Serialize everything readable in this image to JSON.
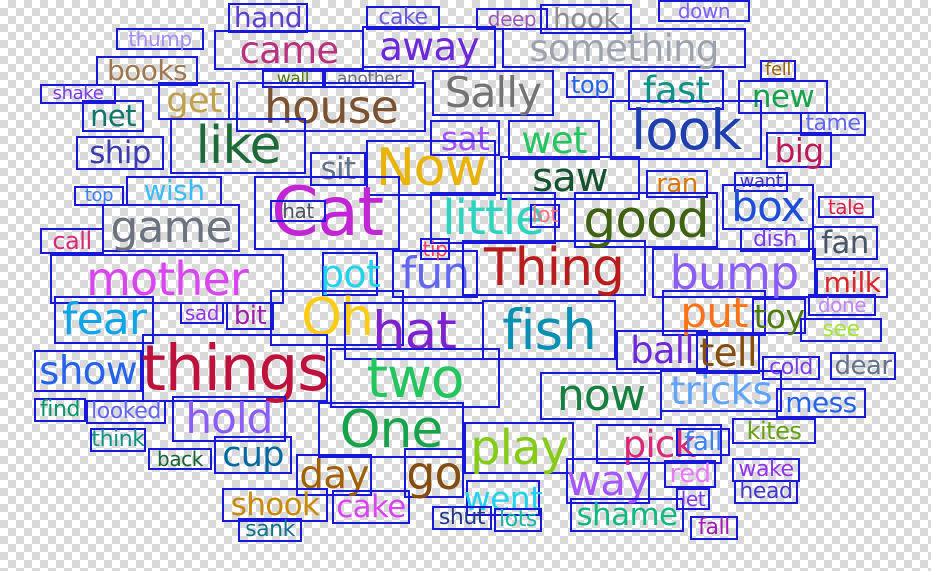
{
  "words": [
    {
      "text": "hand",
      "color": "#5a3fd0"
    },
    {
      "text": "cake",
      "color": "#6a5ae0"
    },
    {
      "text": "deep",
      "color": "#9b59b6"
    },
    {
      "text": "hook",
      "color": "#8e8e8e"
    },
    {
      "text": "down",
      "color": "#7d5fff"
    },
    {
      "text": "thump",
      "color": "#a78bfa"
    },
    {
      "text": "came",
      "color": "#b83280"
    },
    {
      "text": "away",
      "color": "#6d28d9"
    },
    {
      "text": "something",
      "color": "#9ca3af"
    },
    {
      "text": "books",
      "color": "#a07850"
    },
    {
      "text": "wall",
      "color": "#4d7c0f"
    },
    {
      "text": "another",
      "color": "#6b7280"
    },
    {
      "text": "fell",
      "color": "#a16207"
    },
    {
      "text": "shake",
      "color": "#7c3aed"
    },
    {
      "text": "get",
      "color": "#c2a14d"
    },
    {
      "text": "house",
      "color": "#7a5230"
    },
    {
      "text": "Sally",
      "color": "#737373"
    },
    {
      "text": "top",
      "color": "#2563eb"
    },
    {
      "text": "fast",
      "color": "#0d9488"
    },
    {
      "text": "new",
      "color": "#16a34a"
    },
    {
      "text": "net",
      "color": "#0f766e"
    },
    {
      "text": "ship",
      "color": "#3b3bb3"
    },
    {
      "text": "like",
      "color": "#1e6b3a"
    },
    {
      "text": "sat",
      "color": "#a855f7"
    },
    {
      "text": "wet",
      "color": "#22c55e"
    },
    {
      "text": "look",
      "color": "#1e40af"
    },
    {
      "text": "tame",
      "color": "#6366f1"
    },
    {
      "text": "big",
      "color": "#be185d"
    },
    {
      "text": "sit",
      "color": "#64748b"
    },
    {
      "text": "Now",
      "color": "#eab308"
    },
    {
      "text": "saw",
      "color": "#14532d"
    },
    {
      "text": "ran",
      "color": "#d97706"
    },
    {
      "text": "want",
      "color": "#4338ca"
    },
    {
      "text": "top",
      "color": "#3b82f6"
    },
    {
      "text": "wish",
      "color": "#38bdf8"
    },
    {
      "text": "Cat",
      "color": "#c026d3"
    },
    {
      "text": "hat",
      "color": "#4b5563"
    },
    {
      "text": "little",
      "color": "#2dd4bf"
    },
    {
      "text": "lot",
      "color": "#fb7185"
    },
    {
      "text": "good",
      "color": "#3f6212"
    },
    {
      "text": "box",
      "color": "#1d4ed8"
    },
    {
      "text": "tale",
      "color": "#e11d48"
    },
    {
      "text": "game",
      "color": "#6b7280"
    },
    {
      "text": "call",
      "color": "#db2777"
    },
    {
      "text": "dish",
      "color": "#7c3aed"
    },
    {
      "text": "fan",
      "color": "#475569"
    },
    {
      "text": "tip",
      "color": "#f43f5e"
    },
    {
      "text": "mother",
      "color": "#d946ef"
    },
    {
      "text": "pot",
      "color": "#22d3ee"
    },
    {
      "text": "fun",
      "color": "#6366f1"
    },
    {
      "text": "Thing",
      "color": "#b91c1c"
    },
    {
      "text": "bump",
      "color": "#8b5cf6"
    },
    {
      "text": "milk",
      "color": "#dc2626"
    },
    {
      "text": "done",
      "color": "#c084fc"
    },
    {
      "text": "fear",
      "color": "#0ea5e9"
    },
    {
      "text": "sad",
      "color": "#9333ea"
    },
    {
      "text": "bit",
      "color": "#a21caf"
    },
    {
      "text": "Oh",
      "color": "#facc15"
    },
    {
      "text": "hat",
      "color": "#7e22ce"
    },
    {
      "text": "fish",
      "color": "#0891b2"
    },
    {
      "text": "put",
      "color": "#f97316"
    },
    {
      "text": "toy",
      "color": "#4d7c0f"
    },
    {
      "text": "see",
      "color": "#a3e635"
    },
    {
      "text": "ball",
      "color": "#6d28d9"
    },
    {
      "text": "tell",
      "color": "#854d0e"
    },
    {
      "text": "show",
      "color": "#2563eb"
    },
    {
      "text": "things",
      "color": "#be123c"
    },
    {
      "text": "two",
      "color": "#22c55e"
    },
    {
      "text": "now",
      "color": "#15803d"
    },
    {
      "text": "tricks",
      "color": "#60a5fa"
    },
    {
      "text": "cold",
      "color": "#7c3aed"
    },
    {
      "text": "dear",
      "color": "#64748b"
    },
    {
      "text": "mess",
      "color": "#2563eb"
    },
    {
      "text": "find",
      "color": "#059669"
    },
    {
      "text": "looked",
      "color": "#6366f1"
    },
    {
      "text": "hold",
      "color": "#8b5cf6"
    },
    {
      "text": "One",
      "color": "#16a34a"
    },
    {
      "text": "play",
      "color": "#84cc16"
    },
    {
      "text": "pick",
      "color": "#db2777"
    },
    {
      "text": "fall",
      "color": "#3b82f6"
    },
    {
      "text": "kites",
      "color": "#65a30d"
    },
    {
      "text": "think",
      "color": "#0d9488"
    },
    {
      "text": "back",
      "color": "#166534"
    },
    {
      "text": "cup",
      "color": "#0369a1"
    },
    {
      "text": "day",
      "color": "#a16207"
    },
    {
      "text": "go",
      "color": "#854d0e"
    },
    {
      "text": "way",
      "color": "#a855f7"
    },
    {
      "text": "red",
      "color": "#e879f9"
    },
    {
      "text": "wake",
      "color": "#9333ea"
    },
    {
      "text": "shook",
      "color": "#ca8a04"
    },
    {
      "text": "cake",
      "color": "#d946ef"
    },
    {
      "text": "went",
      "color": "#22d3ee"
    },
    {
      "text": "shame",
      "color": "#10b981"
    },
    {
      "text": "let",
      "color": "#7c3aed"
    },
    {
      "text": "head",
      "color": "#4338ca"
    },
    {
      "text": "sank",
      "color": "#0e7490"
    },
    {
      "text": "shut",
      "color": "#1e3a8a"
    },
    {
      "text": "lots",
      "color": "#14b8a6"
    },
    {
      "text": "fall",
      "color": "#a21caf"
    }
  ]
}
